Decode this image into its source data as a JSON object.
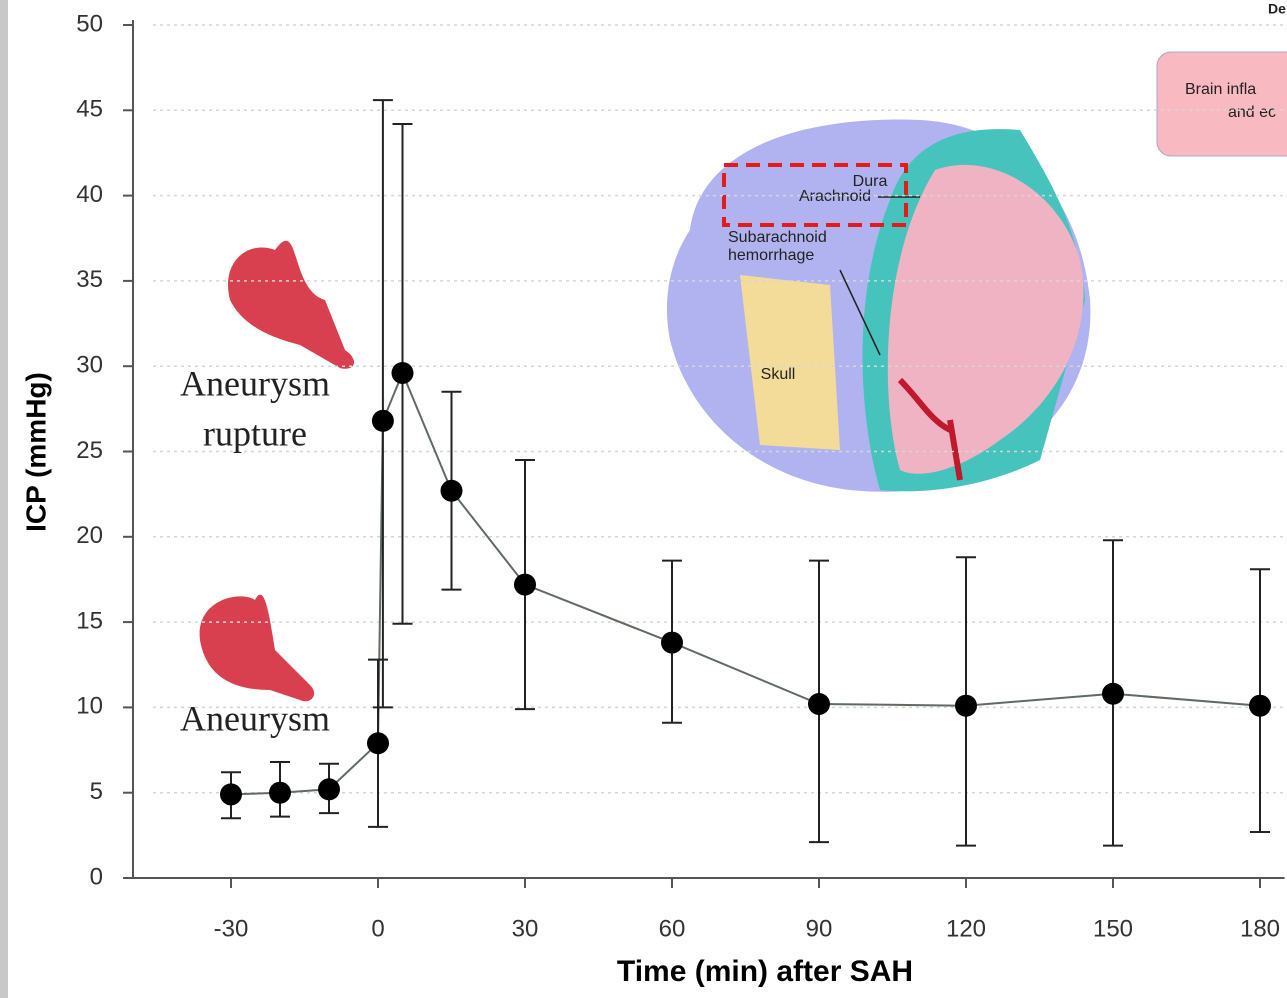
{
  "chart_data": {
    "type": "errorbar-line",
    "y_label": "ICP (mmHg)",
    "x_label": "Time (min) after SAH",
    "x": [
      -30,
      -20,
      -10,
      0,
      1,
      5,
      15,
      30,
      60,
      90,
      120,
      150,
      180
    ],
    "values": [
      4.9,
      5.0,
      5.2,
      7.9,
      26.8,
      29.6,
      22.7,
      17.2,
      13.8,
      10.2,
      10.1,
      10.8,
      10.1
    ],
    "error_minus": [
      1.4,
      1.4,
      1.4,
      4.9,
      16.8,
      14.7,
      5.8,
      7.3,
      4.7,
      8.1,
      8.2,
      8.9,
      7.4
    ],
    "error_plus": [
      1.3,
      1.8,
      1.5,
      4.9,
      18.8,
      14.6,
      5.8,
      7.3,
      4.8,
      8.4,
      8.7,
      9.0,
      8.0
    ],
    "color": "#000000",
    "line_color": "#5f6b63",
    "xlim": [
      -50,
      185
    ],
    "ylim": [
      0,
      50
    ],
    "xticks": [
      -30,
      0,
      30,
      60,
      90,
      120,
      150,
      180
    ],
    "yticks": [
      0,
      5,
      10,
      15,
      20,
      25,
      30,
      35,
      40,
      45,
      50
    ],
    "grid": true,
    "annotations": [
      {
        "lines": [
          "Aneurysm",
          "rupture"
        ]
      },
      {
        "lines": [
          "Aneurysm"
        ]
      }
    ],
    "diagram_labels": [
      "Dura",
      "Arachnoid",
      "Subarachnoid",
      "hemorrhage",
      "Skull"
    ],
    "corner_texts": [
      "De",
      "Brain infla",
      "and ec"
    ]
  }
}
